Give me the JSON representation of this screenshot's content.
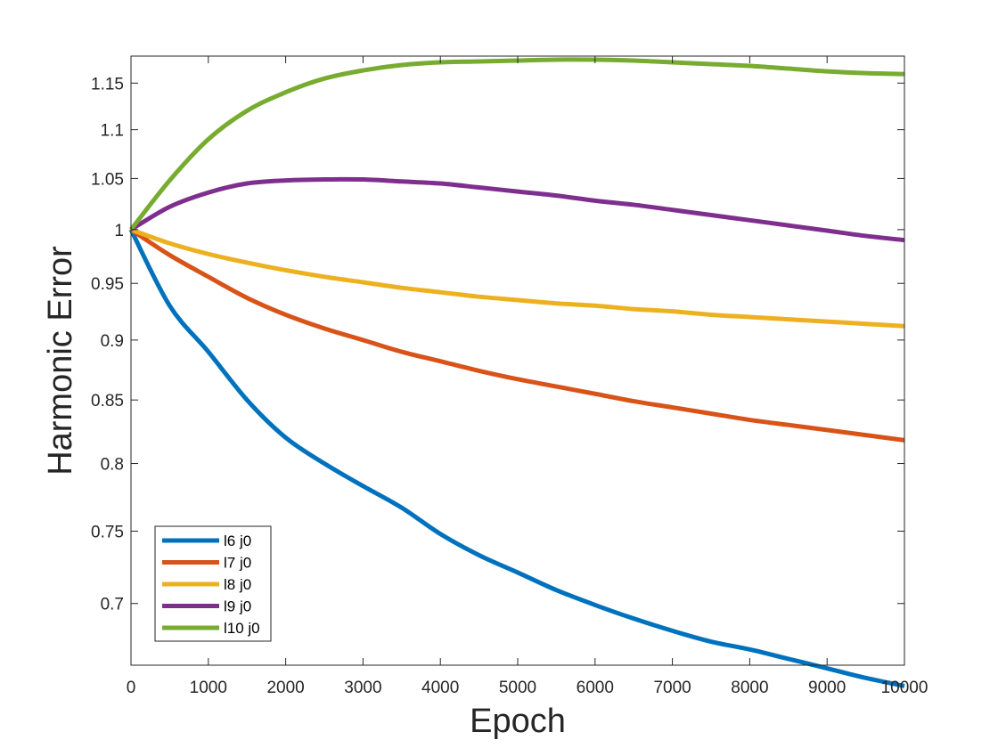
{
  "chart_data": {
    "type": "line",
    "title": "",
    "xlabel": "Epoch",
    "ylabel": "Harmonic Error",
    "xlim": [
      0,
      10000
    ],
    "ylim": [
      0.66,
      1.18
    ],
    "yscale": "log",
    "grid": false,
    "legend_position": "bottom-left",
    "x_ticks": [
      0,
      1000,
      2000,
      3000,
      4000,
      5000,
      6000,
      7000,
      8000,
      9000,
      10000
    ],
    "x_tick_labels": [
      "0",
      "1000",
      "2000",
      "3000",
      "4000",
      "5000",
      "6000",
      "7000",
      "8000",
      "9000",
      "10000"
    ],
    "y_ticks": [
      0.7,
      0.75,
      0.8,
      0.85,
      0.9,
      0.95,
      1,
      1.05,
      1.1,
      1.15
    ],
    "y_tick_labels": [
      "0.7",
      "0.75",
      "0.8",
      "0.85",
      "0.9",
      "0.95",
      "1",
      "1.05",
      "1.1",
      "1.15"
    ],
    "x": [
      0,
      500,
      1000,
      1500,
      2000,
      2500,
      3000,
      3500,
      4000,
      4500,
      5000,
      5500,
      6000,
      6500,
      7000,
      7500,
      8000,
      8500,
      9000,
      9500,
      10000
    ],
    "series": [
      {
        "name": "l6 j0",
        "color": "#0072BD",
        "values": [
          1.0,
          0.93,
          0.89,
          0.85,
          0.82,
          0.8,
          0.783,
          0.767,
          0.748,
          0.733,
          0.721,
          0.709,
          0.699,
          0.69,
          0.682,
          0.675,
          0.67,
          0.664,
          0.658,
          0.652,
          0.647
        ]
      },
      {
        "name": "l7 j0",
        "color": "#D95319",
        "values": [
          1.0,
          0.976,
          0.956,
          0.937,
          0.922,
          0.91,
          0.9,
          0.89,
          0.882,
          0.874,
          0.867,
          0.861,
          0.855,
          0.849,
          0.844,
          0.839,
          0.834,
          0.83,
          0.826,
          0.822,
          0.818
        ]
      },
      {
        "name": "l8 j0",
        "color": "#EDB120",
        "values": [
          1.0,
          0.987,
          0.977,
          0.969,
          0.962,
          0.956,
          0.951,
          0.946,
          0.942,
          0.938,
          0.935,
          0.932,
          0.93,
          0.927,
          0.925,
          0.922,
          0.92,
          0.918,
          0.916,
          0.914,
          0.912
        ]
      },
      {
        "name": "l9 j0",
        "color": "#7E2F8E",
        "values": [
          1.0,
          1.022,
          1.036,
          1.045,
          1.048,
          1.049,
          1.049,
          1.047,
          1.045,
          1.041,
          1.037,
          1.033,
          1.028,
          1.024,
          1.019,
          1.014,
          1.009,
          1.004,
          0.999,
          0.994,
          0.99
        ]
      },
      {
        "name": "l10 j0",
        "color": "#77AC30",
        "values": [
          1.0,
          1.048,
          1.09,
          1.12,
          1.14,
          1.155,
          1.164,
          1.17,
          1.173,
          1.174,
          1.175,
          1.176,
          1.176,
          1.175,
          1.173,
          1.171,
          1.169,
          1.166,
          1.163,
          1.161,
          1.16
        ]
      }
    ]
  }
}
